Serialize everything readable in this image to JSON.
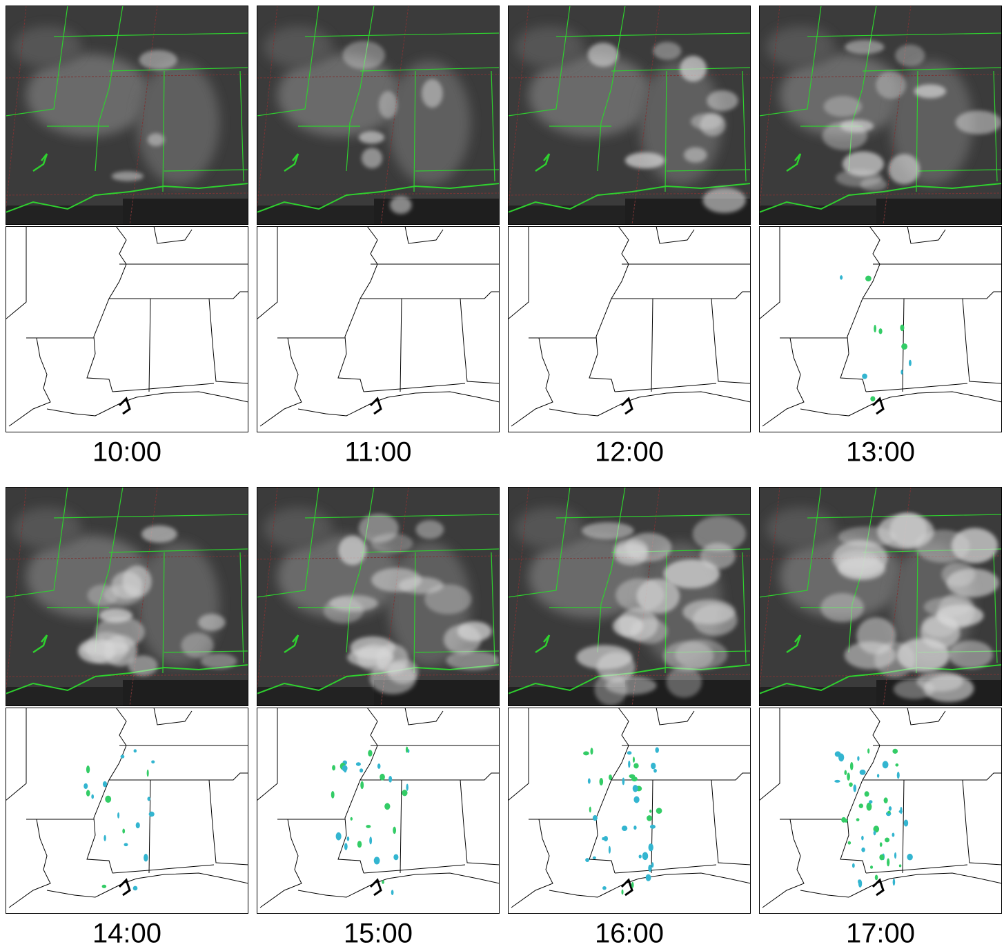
{
  "panels": [
    {
      "label": "10:00"
    },
    {
      "label": "11:00"
    },
    {
      "label": "12:00"
    },
    {
      "label": "13:00"
    },
    {
      "label": "14:00"
    },
    {
      "label": "15:00"
    },
    {
      "label": "16:00"
    },
    {
      "label": "17:00"
    }
  ]
}
